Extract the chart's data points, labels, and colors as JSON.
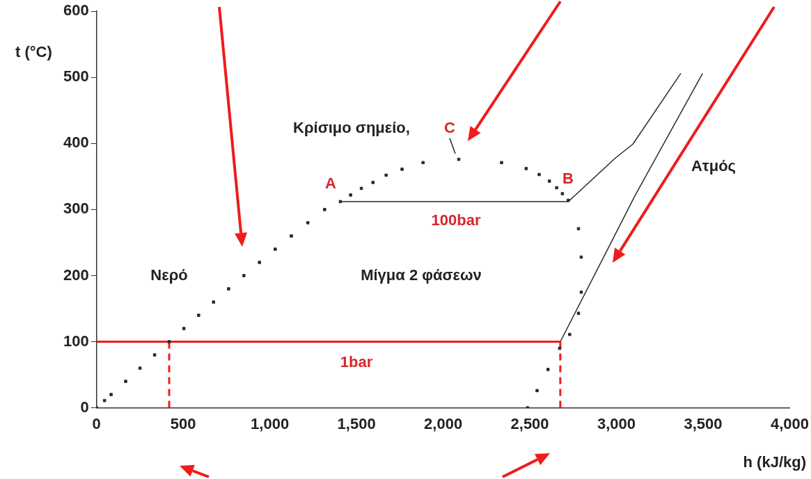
{
  "chart_data": {
    "type": "line",
    "xlabel": "h (kJ/kg)",
    "ylabel": "t (°C)",
    "xlim": [
      0,
      4000
    ],
    "ylim": [
      0,
      600
    ],
    "xticks": [
      0,
      500,
      {
        "value": 1000,
        "label": "1,000"
      },
      {
        "value": 1500,
        "label": "1,500"
      },
      {
        "value": 2000,
        "label": "2,000"
      },
      {
        "value": 2500,
        "label": "2,500"
      },
      {
        "value": 3000,
        "label": "3,000"
      },
      {
        "value": 3500,
        "label": "3,500"
      },
      {
        "value": 4000,
        "label": "4,000"
      }
    ],
    "yticks": [
      0,
      100,
      200,
      300,
      400,
      500,
      600
    ],
    "grid": false,
    "legend": false,
    "series": [
      {
        "type": "scatter",
        "marker": "square",
        "color": "#2a2a2a",
        "x": [
          0,
          46,
          84,
          168,
          251,
          335,
          419,
          504,
          589,
          675,
          762,
          850,
          940,
          1031,
          1124,
          1219,
          1316,
          1407,
          1466,
          1528,
          1595,
          1671,
          1763,
          1884,
          2090,
          2337,
          2479,
          2554,
          2613,
          2655,
          2688,
          2722,
          2781,
          2797,
          2797,
          2781,
          2730,
          2672,
          2605,
          2542,
          2487
        ],
        "values": [
          0,
          11,
          20,
          40,
          60,
          80,
          100,
          120,
          140,
          160,
          180,
          200,
          220,
          240,
          260,
          280,
          300,
          312,
          322,
          332,
          341,
          352,
          361,
          371,
          376,
          371,
          362,
          353,
          343,
          333,
          324,
          314,
          271,
          228,
          175,
          143,
          111,
          90,
          58,
          26,
          0
        ]
      },
      {
        "color": "#2a2a2a",
        "line_style": "solid",
        "x": [
          1407,
          2722,
          2994,
          3095,
          3371
        ],
        "values": [
          312,
          312,
          378,
          399,
          506
        ]
      },
      {
        "color": "#2a2a2a",
        "line_style": "solid",
        "x": [
          2676,
          2969,
          3107,
          3497
        ],
        "values": [
          100,
          250,
          321,
          506
        ]
      },
      {
        "color": "#ee1c1c",
        "line_style": "solid",
        "x": [
          0,
          2676
        ],
        "values": [
          100,
          100
        ]
      },
      {
        "color": "#ee1c1c",
        "line_style": "dashed",
        "x": [
          419,
          419
        ],
        "values": [
          0,
          100
        ]
      },
      {
        "color": "#ee1c1c",
        "line_style": "dashed",
        "x": [
          2676,
          2676
        ],
        "values": [
          0,
          100
        ]
      }
    ],
    "annotations": [
      "Κρίσιμο σημείο,",
      "C",
      "A",
      "B",
      "100bar",
      "Νερό",
      "Μίγμα 2 φάσεων",
      "Ατμός",
      "1bar"
    ]
  }
}
